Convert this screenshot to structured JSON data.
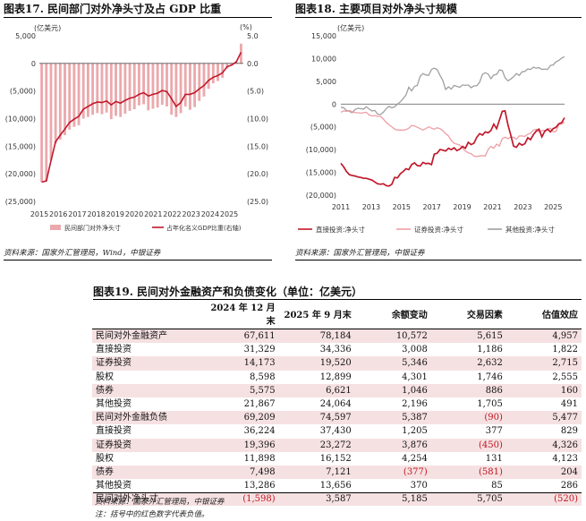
{
  "fig17": {
    "title": "图表17. 民间部门对外净头寸及占 GDP 比重",
    "left_unit": "(亿美元)",
    "right_unit": "(%)",
    "left_ticks": [
      "5,000",
      "0",
      "(5,000)",
      "(10,000)",
      "(15,000)",
      "(20,000)",
      "(25,000)"
    ],
    "right_ticks": [
      "5.0",
      "0.0",
      "(5.0)",
      "(10.0)",
      "(15.0)",
      "(20.0)",
      "(25.0)"
    ],
    "x_labels": [
      "2015",
      "2016",
      "2017",
      "2018",
      "2019",
      "2020",
      "2021",
      "2022",
      "2023",
      "2024",
      "2025"
    ],
    "legend_bar": "民间部门对外净头寸",
    "legend_line": "占年化名义GDP比重(右轴)",
    "source": "资料来源：国家外汇管理局，Wind，中银证券"
  },
  "fig18": {
    "title": "图表18. 主要项目对外净头寸规模",
    "unit": "(亿美元)",
    "y_ticks": [
      "15,000",
      "10,000",
      "5,000",
      "0",
      "(5,000)",
      "(10,000)",
      "(15,000)",
      "(20,000)"
    ],
    "x_labels": [
      "2011",
      "2013",
      "2015",
      "2017",
      "2019",
      "2021",
      "2023",
      "2025"
    ],
    "legend": [
      "直接投资:净头寸",
      "证券投资:净头寸",
      "其他投资:净头寸"
    ],
    "source": "资料来源：国家外汇管理局，中银证券"
  },
  "chart_data": [
    {
      "type": "bar",
      "title": "民间部门对外净头寸及占 GDP 比重",
      "ylabel": "亿美元",
      "y2label": "%",
      "ylim": [
        -25000,
        5000
      ],
      "y2lim": [
        -25,
        5
      ],
      "x_start": 2015,
      "x_end": 2025.75,
      "series": [
        {
          "name": "民间部门对外净头寸",
          "axis": "left",
          "values": [
            -21500,
            -21300,
            -17500,
            -14500,
            -13800,
            -13000,
            -12000,
            -11500,
            -11200,
            -10000,
            -9700,
            -9300,
            -9000,
            -9200,
            -8900,
            -10100,
            -9500,
            -9700,
            -9100,
            -8600,
            -8300,
            -7600,
            -7400,
            -8500,
            -8200,
            -8000,
            -7500,
            -7800,
            -9300,
            -9700,
            -9000,
            -7800,
            -8400,
            -7900,
            -6800,
            -6000,
            -4600,
            -3600,
            -3200,
            -2600,
            -900,
            -400,
            400,
            3587
          ]
        },
        {
          "name": "占年化名义GDP比重(右轴)",
          "axis": "right",
          "type": "line",
          "values": [
            -21.5,
            -21.3,
            -17.6,
            -14.2,
            -13.0,
            -11.9,
            -10.7,
            -10.1,
            -9.6,
            -8.3,
            -7.8,
            -7.3,
            -7.0,
            -7.1,
            -6.8,
            -7.5,
            -6.9,
            -7.2,
            -6.7,
            -6.3,
            -6.1,
            -5.6,
            -5.3,
            -5.9,
            -5.6,
            -5.4,
            -4.9,
            -5.1,
            -6.4,
            -7.8,
            -7.1,
            -5.6,
            -5.6,
            -5.3,
            -4.6,
            -4.0,
            -3.1,
            -2.5,
            -2.2,
            -1.7,
            -0.6,
            -0.3,
            0.3,
            2.0
          ]
        }
      ]
    },
    {
      "type": "line",
      "title": "主要项目对外净头寸规模",
      "ylabel": "亿美元",
      "ylim": [
        -20000,
        15000
      ],
      "x_start": 2011,
      "x_end": 2025.75,
      "series": [
        {
          "name": "直接投资:净头寸",
          "values": [
            -13000,
            -13800,
            -14800,
            -15500,
            -15700,
            -15800,
            -16000,
            -16100,
            -16300,
            -16300,
            -16500,
            -16700,
            -17100,
            -17500,
            -17600,
            -17500,
            -17900,
            -18000,
            -17600,
            -16100,
            -16200,
            -15300,
            -14800,
            -14200,
            -14400,
            -13300,
            -12900,
            -13500,
            -13600,
            -12800,
            -13100,
            -13000,
            -13300,
            -11000,
            -10800,
            -10000,
            -10100,
            -10300,
            -9700,
            -10000,
            -9600,
            -10200,
            -9900,
            -9300,
            -9700,
            -8400,
            -8900,
            -8600,
            -7300,
            -6500,
            -6800,
            -6100,
            -6300,
            -5800,
            -4400,
            -5400,
            -3500,
            -1600,
            -1500,
            -4500,
            -6800,
            -9200,
            -9500,
            -8600,
            -9000,
            -8700,
            -7400,
            -7800,
            -6700,
            -5900,
            -5500,
            -7200,
            -6000,
            -5500,
            -6100,
            -5400,
            -5100,
            -4300,
            -4100,
            -3000
          ]
        },
        {
          "name": "证券投资:净头寸",
          "values": [
            -1800,
            -1500,
            -1600,
            -1400,
            -1700,
            -1900,
            -1900,
            -2000,
            -1900,
            -1800,
            -2400,
            -2600,
            -2500,
            -2700,
            -2700,
            -3300,
            -4000,
            -4500,
            -5000,
            -5500,
            -5700,
            -5700,
            -5700,
            -5600,
            -5300,
            -4700,
            -4800,
            -5100,
            -5400,
            -5700,
            -5400,
            -5000,
            -5300,
            -5500,
            -5200,
            -5400,
            -5800,
            -6500,
            -7000,
            -8000,
            -8600,
            -8800,
            -9000,
            -9700,
            -10300,
            -10700,
            -10900,
            -11400,
            -11500,
            -11400,
            -11300,
            -11400,
            -10000,
            -9300,
            -9700,
            -8800,
            -9200,
            -7600,
            -7300,
            -7600,
            -7200,
            -7300,
            -7700,
            -7000,
            -7000,
            -7100,
            -6600,
            -6400,
            -5700,
            -5500,
            -6100,
            -5800,
            -5800,
            -5500,
            -5300,
            -6100,
            -6000,
            -4400,
            -4400,
            -3900
          ]
        },
        {
          "name": "其他投资:净头寸",
          "values": [
            -700,
            -800,
            -1400,
            -1600,
            -1900,
            -1200,
            -900,
            -1000,
            -1100,
            -600,
            -1100,
            -1500,
            -1400,
            -2200,
            -2300,
            -1800,
            -1000,
            -500,
            -800,
            -600,
            0,
            500,
            1200,
            2000,
            3700,
            2900,
            3900,
            4100,
            6100,
            6700,
            6400,
            6300,
            7600,
            7900,
            7600,
            6300,
            5200,
            3200,
            3800,
            3300,
            4100,
            3900,
            3700,
            4200,
            4100,
            4200,
            3600,
            4000,
            4000,
            4800,
            6500,
            6900,
            6600,
            5600,
            6400,
            6500,
            7500,
            7400,
            5800,
            5100,
            5500,
            6000,
            6700,
            6300,
            7100,
            7200,
            7700,
            7600,
            8100,
            7900,
            8000,
            7600,
            7700,
            7600,
            8500,
            8600,
            9300,
            9600,
            10100,
            10400
          ]
        }
      ]
    }
  ],
  "table": {
    "title": "图表19. 民间对外金融资产和负债变化（单位：亿美元）",
    "headers": [
      "",
      "2024 年 12 月末",
      "2025 年 9 月末",
      "余额变动",
      "交易因素",
      "估值效应"
    ],
    "rows": [
      {
        "label": "民间对外金融资产",
        "c1": "67,611",
        "c2": "78,184",
        "c3": "10,572",
        "c4": "5,615",
        "c5": "4,957"
      },
      {
        "label": "直接投资",
        "c1": "31,329",
        "c2": "34,336",
        "c3": "3,008",
        "c4": "1,186",
        "c5": "1,822"
      },
      {
        "label": "证券投资",
        "c1": "14,173",
        "c2": "19,520",
        "c3": "5,346",
        "c4": "2,632",
        "c5": "2,715"
      },
      {
        "label": "股权",
        "c1": "8,598",
        "c2": "12,899",
        "c3": "4,301",
        "c4": "1,746",
        "c5": "2,555"
      },
      {
        "label": "债券",
        "c1": "5,575",
        "c2": "6,621",
        "c3": "1,046",
        "c4": "886",
        "c5": "160"
      },
      {
        "label": "其他投资",
        "c1": "21,867",
        "c2": "24,064",
        "c3": "2,196",
        "c4": "1,705",
        "c5": "491"
      },
      {
        "label": "民间对外金融负债",
        "c1": "69,209",
        "c2": "74,597",
        "c3": "5,387",
        "c4": "(90)",
        "c5": "5,477"
      },
      {
        "label": "直接投资",
        "c1": "36,224",
        "c2": "37,430",
        "c3": "1,205",
        "c4": "377",
        "c5": "829"
      },
      {
        "label": "证券投资",
        "c1": "19,396",
        "c2": "23,272",
        "c3": "3,876",
        "c4": "(450)",
        "c5": "4,326"
      },
      {
        "label": "股权",
        "c1": "11,898",
        "c2": "16,152",
        "c3": "4,254",
        "c4": "131",
        "c5": "4,123"
      },
      {
        "label": "债券",
        "c1": "7,498",
        "c2": "7,121",
        "c3": "(377)",
        "c4": "(581)",
        "c5": "204"
      },
      {
        "label": "其他投资",
        "c1": "13,286",
        "c2": "13,656",
        "c3": "370",
        "c4": "85",
        "c5": "286"
      },
      {
        "label": "民间对外净头寸",
        "c1": "(1,598)",
        "c2": "3,587",
        "c3": "5,185",
        "c4": "5,705",
        "c5": "(520)"
      }
    ],
    "source": "资料来源：国家外汇管理局，中银证券",
    "note": "注：括号中的红色数字代表负值。"
  },
  "colors": {
    "bar": "#eba9ad",
    "dark_red": "#c0192b",
    "mid_red": "#ee9ea5",
    "gray": "#a0a0a0",
    "band": "#f6e1e2"
  }
}
